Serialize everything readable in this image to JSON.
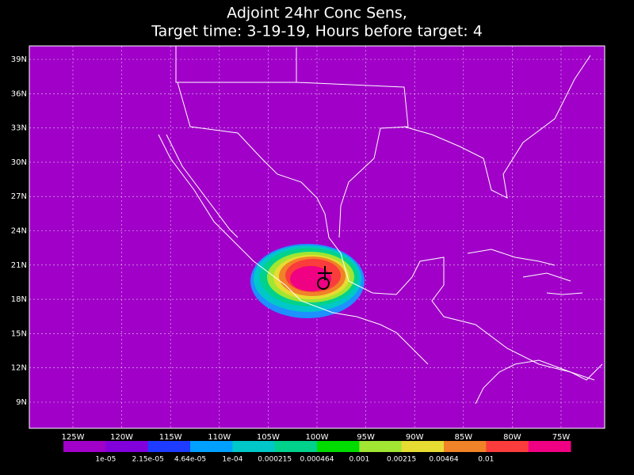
{
  "title": {
    "line1": "Adjoint 24hr Conc Sens,",
    "line2": "Target time: 3-19-19, Hours before target: 4"
  },
  "lat_labels": [
    "39N",
    "36N",
    "33N",
    "30N",
    "27N",
    "24N",
    "21N",
    "18N",
    "15N",
    "12N",
    "9N"
  ],
  "lon_labels": [
    "125W",
    "120W",
    "115W",
    "110W",
    "105W",
    "100W",
    "95W",
    "90W",
    "85W",
    "80W",
    "75W"
  ],
  "colorbar": {
    "colors": [
      "#a000c8",
      "#8200dc",
      "#1e3cff",
      "#00a0ff",
      "#00c8c8",
      "#00d28c",
      "#00dc00",
      "#a0e632",
      "#e6dc32",
      "#f08228",
      "#fa3c3c",
      "#f00082"
    ],
    "labels": [
      "1e-05",
      "2.15e-05",
      "4.64e-05",
      "1e-04",
      "0.000215",
      "0.000464",
      "0.001",
      "0.00215",
      "0.00464",
      "0.01"
    ]
  }
}
